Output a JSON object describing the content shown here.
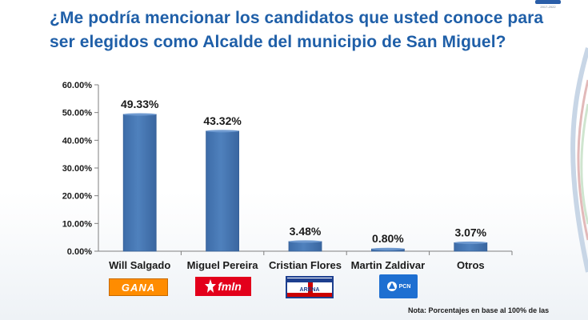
{
  "title": {
    "line1": "¿Me podría mencionar los candidatos que usted conoce para",
    "line2": "ser elegidos como Alcalde del municipio de San Miguel?"
  },
  "corner_logo_text": "2017-2022",
  "note": "Nota: Porcentajes en base al 100% de las",
  "parties": [
    {
      "label": "GANA",
      "color": "#ff8c00"
    },
    {
      "label": "fmln",
      "color": "#e3001b"
    },
    {
      "label": "ARENA",
      "color": "#1d3f8f"
    },
    {
      "label": "PCN",
      "color": "#1e6fd1"
    }
  ],
  "chart_data": {
    "type": "bar",
    "categories": [
      "Will Salgado",
      "Miguel Pereira",
      "Cristian Flores",
      "Martin Zaldivar",
      "Otros"
    ],
    "values": [
      49.33,
      43.32,
      3.48,
      0.8,
      3.07
    ],
    "value_labels": [
      "49.33%",
      "43.32%",
      "3.48%",
      "0.80%",
      "3.07%"
    ],
    "ylim": [
      0,
      60
    ],
    "yticks": [
      0,
      10,
      20,
      30,
      40,
      50,
      60
    ],
    "ytick_labels": [
      "0.00%",
      "10.00%",
      "20.00%",
      "30.00%",
      "40.00%",
      "50.00%",
      "60.00%"
    ],
    "bar_color": "#4f81bd",
    "grid": false,
    "title": "",
    "xlabel": "",
    "ylabel": ""
  }
}
